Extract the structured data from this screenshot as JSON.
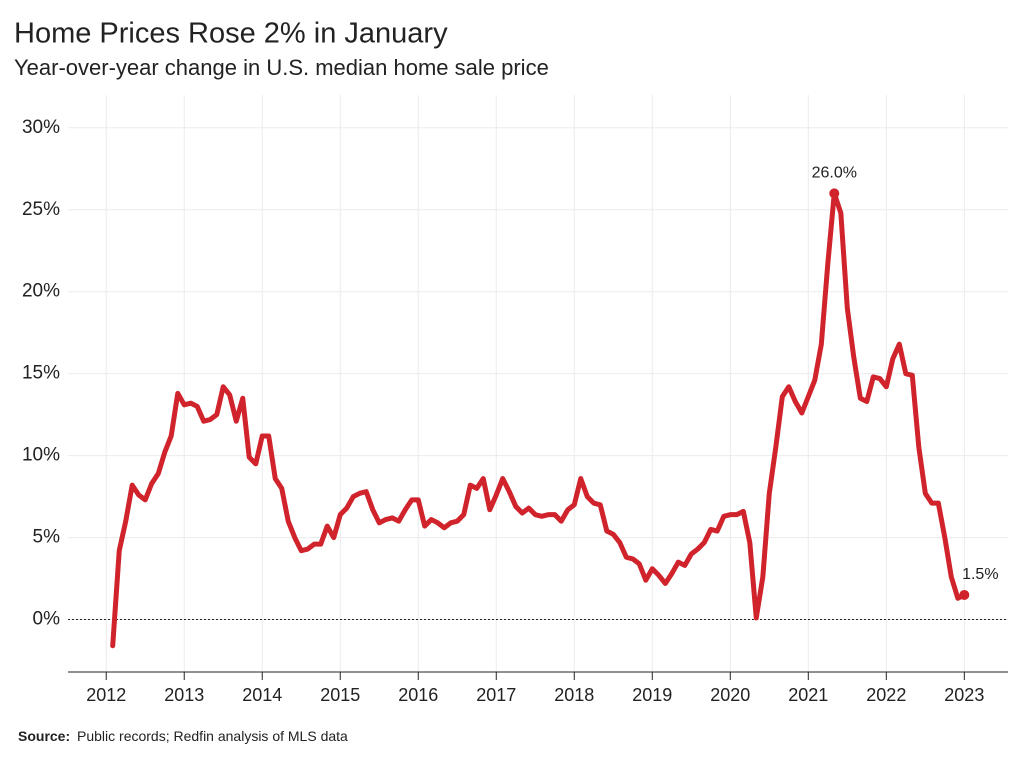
{
  "chart_data": {
    "type": "line",
    "title": "Home Prices Rose 2% in January",
    "subtitle": "Year-over-year change in U.S. median home sale price",
    "source": {
      "label": "Source:",
      "text": "Public records; Redfin analysis of MLS data"
    },
    "color": "#d0232b",
    "x": [
      2012.083,
      2012.167,
      2012.25,
      2012.333,
      2012.417,
      2012.5,
      2012.583,
      2012.667,
      2012.75,
      2012.833,
      2012.917,
      2013,
      2013.083,
      2013.167,
      2013.25,
      2013.333,
      2013.417,
      2013.5,
      2013.583,
      2013.667,
      2013.75,
      2013.833,
      2013.917,
      2014,
      2014.083,
      2014.167,
      2014.25,
      2014.333,
      2014.417,
      2014.5,
      2014.583,
      2014.667,
      2014.75,
      2014.833,
      2014.917,
      2015,
      2015.083,
      2015.167,
      2015.25,
      2015.333,
      2015.417,
      2015.5,
      2015.583,
      2015.667,
      2015.75,
      2015.833,
      2015.917,
      2016,
      2016.083,
      2016.167,
      2016.25,
      2016.333,
      2016.417,
      2016.5,
      2016.583,
      2016.667,
      2016.75,
      2016.833,
      2016.917,
      2017,
      2017.083,
      2017.167,
      2017.25,
      2017.333,
      2017.417,
      2017.5,
      2017.583,
      2017.667,
      2017.75,
      2017.833,
      2017.917,
      2018,
      2018.083,
      2018.167,
      2018.25,
      2018.333,
      2018.417,
      2018.5,
      2018.583,
      2018.667,
      2018.75,
      2018.833,
      2018.917,
      2019,
      2019.083,
      2019.167,
      2019.25,
      2019.333,
      2019.417,
      2019.5,
      2019.583,
      2019.667,
      2019.75,
      2019.833,
      2019.917,
      2020,
      2020.083,
      2020.167,
      2020.25,
      2020.333,
      2020.417,
      2020.5,
      2020.583,
      2020.667,
      2020.75,
      2020.833,
      2020.917,
      2021,
      2021.083,
      2021.167,
      2021.25,
      2021.333,
      2021.417,
      2021.5,
      2021.583,
      2021.667,
      2021.75,
      2021.833,
      2021.917,
      2022,
      2022.083,
      2022.167,
      2022.25,
      2022.333,
      2022.417,
      2022.5,
      2022.583,
      2022.667,
      2022.75,
      2022.833,
      2022.917,
      2023
    ],
    "values": [
      -1.6,
      4.2,
      6,
      8.2,
      7.6,
      7.3,
      8.3,
      8.9,
      10.2,
      11.2,
      13.8,
      13.1,
      13.2,
      13,
      12.1,
      12.2,
      12.5,
      14.2,
      13.7,
      12.1,
      13.5,
      9.9,
      9.5,
      11.2,
      11.2,
      8.6,
      8,
      6,
      5,
      4.2,
      4.3,
      4.6,
      4.6,
      5.7,
      5,
      6.4,
      6.8,
      7.5,
      7.7,
      7.8,
      6.7,
      5.9,
      6.1,
      6.2,
      6,
      6.7,
      7.3,
      7.3,
      5.7,
      6.1,
      5.9,
      5.6,
      5.9,
      6,
      6.4,
      8.2,
      8,
      8.6,
      6.7,
      7.6,
      8.6,
      7.8,
      6.9,
      6.5,
      6.8,
      6.4,
      6.3,
      6.4,
      6.4,
      6,
      6.7,
      7,
      8.6,
      7.5,
      7.1,
      7,
      5.4,
      5.2,
      4.7,
      3.8,
      3.7,
      3.4,
      2.4,
      3.1,
      2.7,
      2.2,
      2.8,
      3.5,
      3.3,
      4,
      4.3,
      4.7,
      5.5,
      5.4,
      6.3,
      6.4,
      6.4,
      6.6,
      4.7,
      0.1,
      2.6,
      7.7,
      10.5,
      13.6,
      14.2,
      13.3,
      12.6,
      13.6,
      14.6,
      16.8,
      21.7,
      26,
      24.8,
      19,
      16,
      13.5,
      13.3,
      14.8,
      14.7,
      14.2,
      15.9,
      16.8,
      15,
      14.9,
      10.5,
      7.7,
      7.1,
      7.1,
      5,
      2.6,
      1.3,
      1.5
    ],
    "value_labels": [
      null,
      null,
      null,
      null,
      null,
      null,
      null,
      null,
      null,
      null,
      null,
      null,
      null,
      null,
      null,
      null,
      null,
      null,
      null,
      null,
      null,
      null,
      null,
      null,
      null,
      null,
      null,
      null,
      null,
      null,
      null,
      null,
      null,
      null,
      null,
      null,
      null,
      null,
      null,
      null,
      null,
      null,
      null,
      null,
      null,
      null,
      null,
      null,
      null,
      null,
      null,
      null,
      null,
      null,
      null,
      null,
      null,
      null,
      null,
      null,
      null,
      null,
      null,
      null,
      null,
      null,
      null,
      null,
      null,
      null,
      null,
      null,
      null,
      null,
      null,
      null,
      null,
      null,
      null,
      null,
      null,
      null,
      null,
      null,
      null,
      null,
      null,
      null,
      null,
      null,
      null,
      null,
      null,
      null,
      null,
      null,
      null,
      null,
      null,
      null,
      null,
      null,
      null,
      null,
      null,
      null,
      null,
      null,
      null,
      null,
      null,
      "26.0%",
      null,
      null,
      null,
      null,
      null,
      null,
      null,
      null,
      null,
      null,
      null,
      null,
      null,
      null,
      null,
      null,
      null,
      null,
      null,
      "1.5%"
    ],
    "xlim": [
      2011.51,
      2023.56
    ],
    "ylim": [
      -3.2,
      32
    ],
    "xticks": [
      2012,
      2013,
      2014,
      2015,
      2016,
      2017,
      2018,
      2019,
      2020,
      2021,
      2022,
      2023
    ],
    "yticks": [
      {
        "value": 0,
        "label": "0%"
      },
      {
        "value": 5,
        "label": "5%"
      },
      {
        "value": 10,
        "label": "10%"
      },
      {
        "value": 15,
        "label": "15%"
      },
      {
        "value": 20,
        "label": "20%"
      },
      {
        "value": 25,
        "label": "25%"
      },
      {
        "value": 30,
        "label": "30%"
      }
    ],
    "grid": true,
    "zero_line": true
  }
}
